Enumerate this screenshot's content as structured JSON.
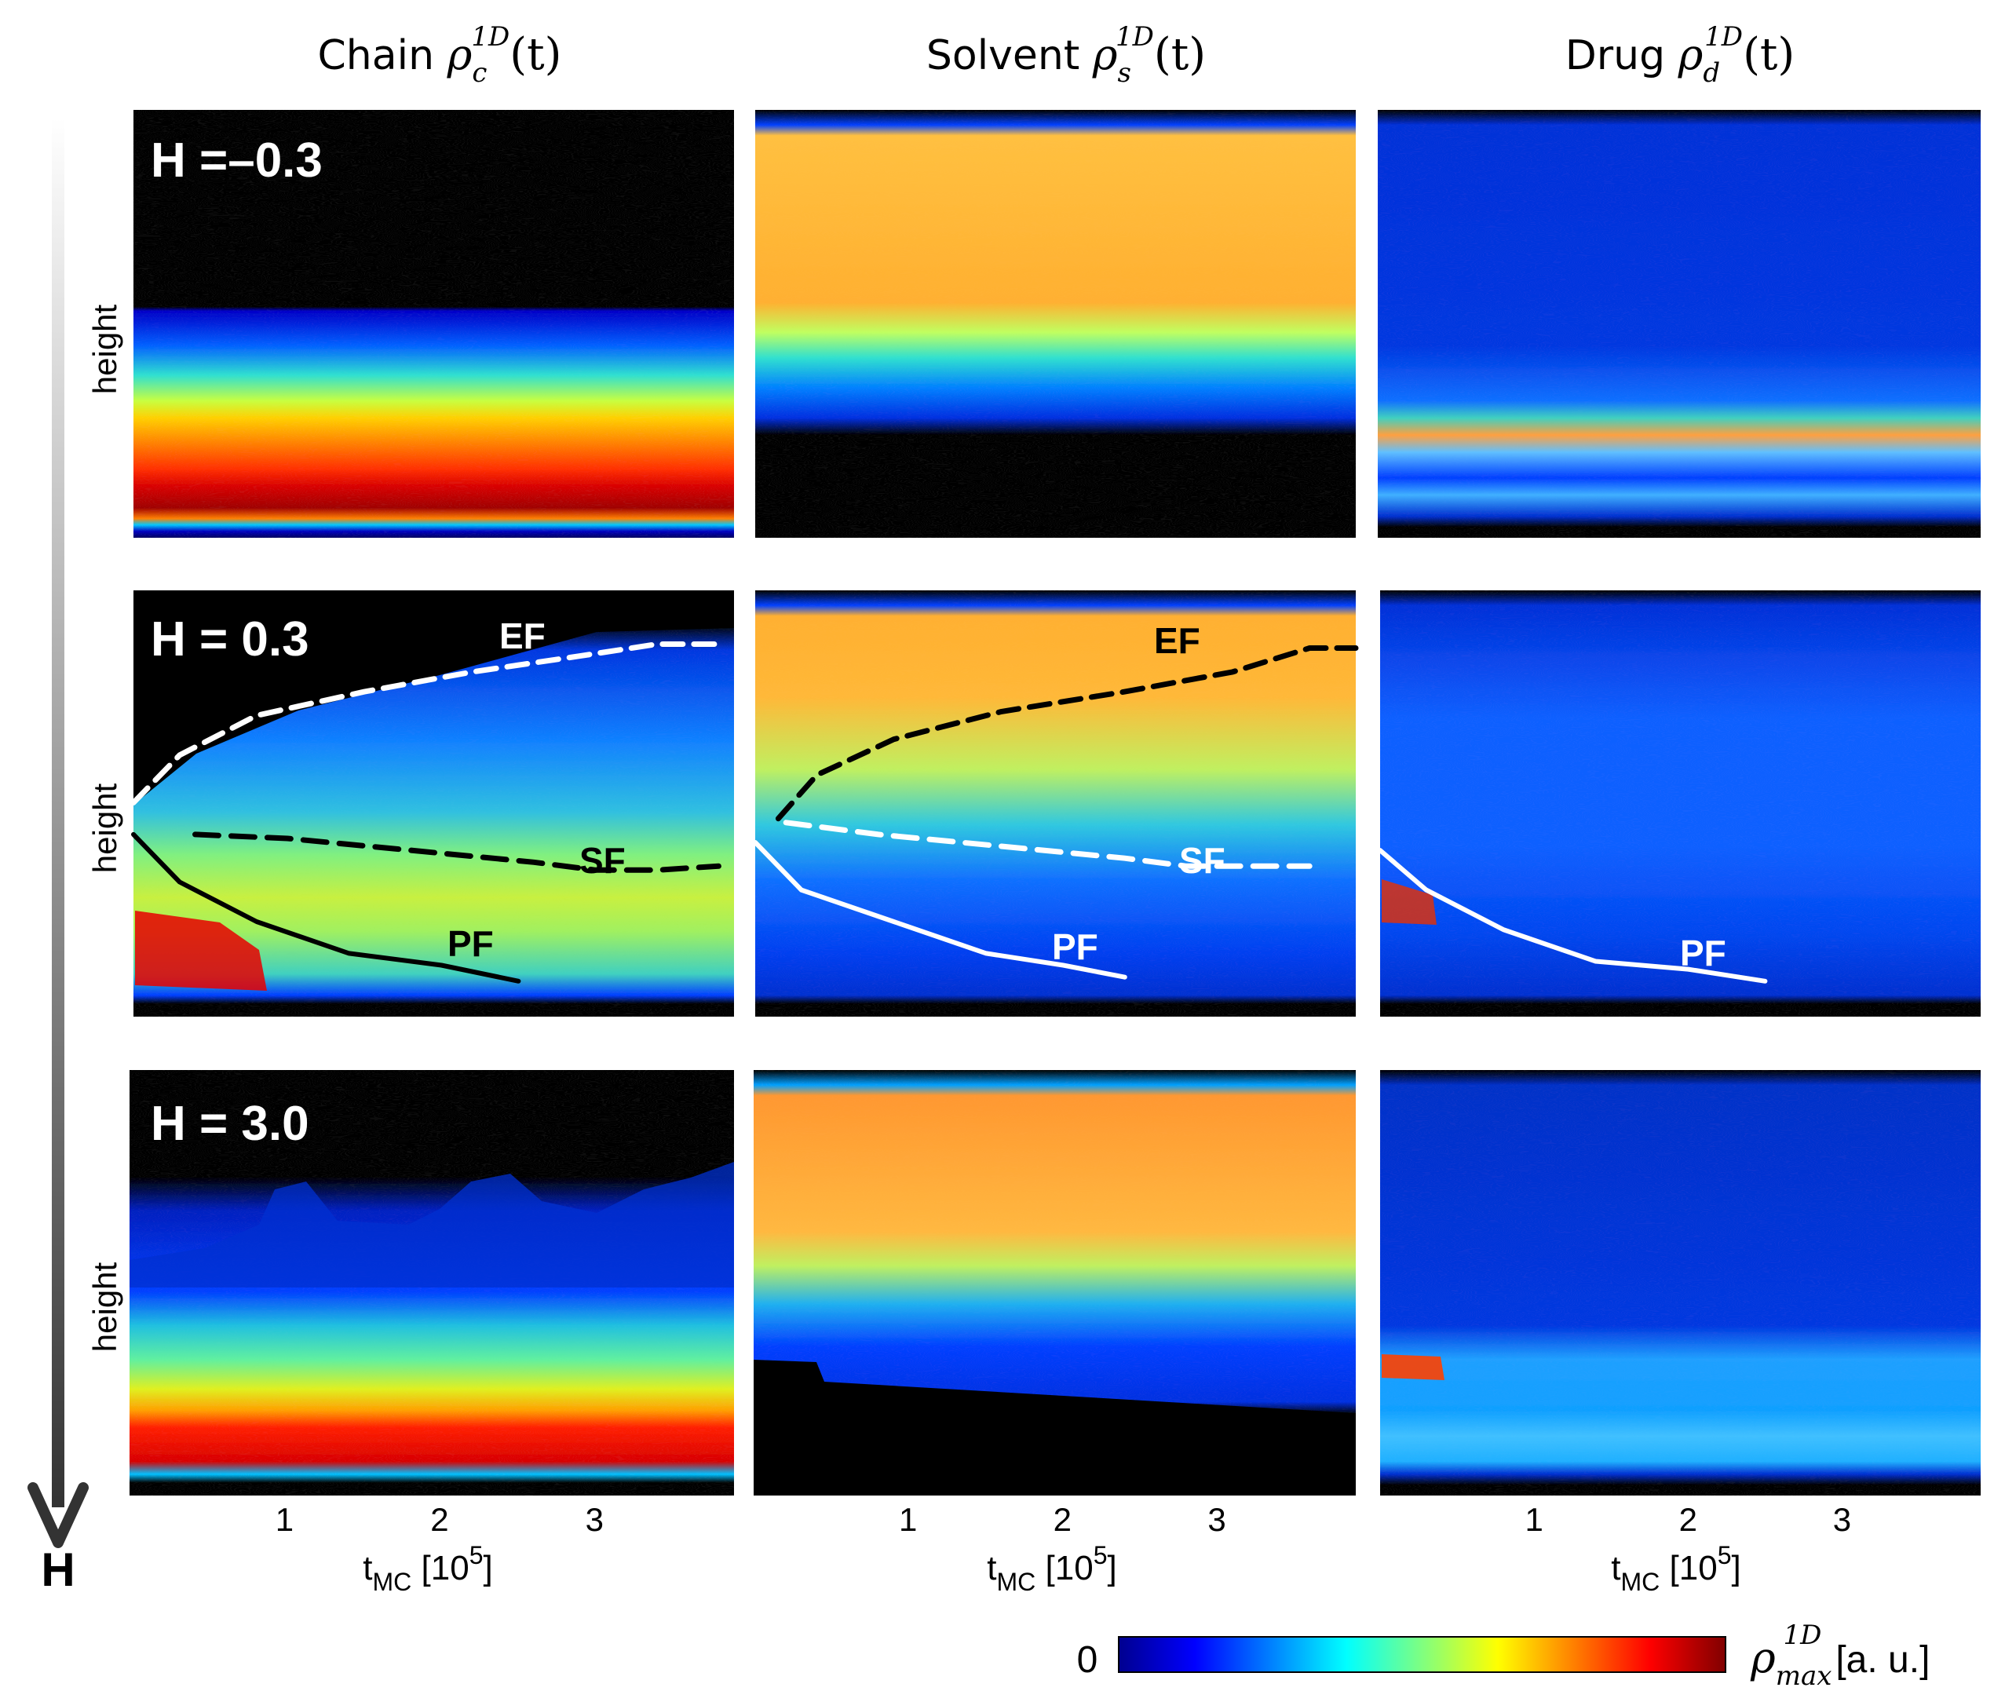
{
  "columns": [
    {
      "word": "Chain",
      "symbol": "ρ",
      "sub": "c",
      "sup": "1D",
      "arg": "(t)"
    },
    {
      "word": "Solvent",
      "symbol": "ρ",
      "sub": "s",
      "sup": "1D",
      "arg": "(t)"
    },
    {
      "word": "Drug",
      "symbol": "ρ",
      "sub": "d",
      "sup": "1D",
      "arg": "(t)"
    }
  ],
  "rows": [
    {
      "label": "H =–0.3",
      "ylabel": "height"
    },
    {
      "label": "H = 0.3",
      "ylabel": "height"
    },
    {
      "label": "H = 3.0",
      "ylabel": "height"
    }
  ],
  "x_axis": {
    "label_main": "t",
    "label_sub": "MC",
    "label_unit": "[10",
    "label_exp": "5",
    "label_close": "]",
    "ticks": [
      "1",
      "2",
      "3"
    ]
  },
  "arrow_label": "H",
  "colorbar": {
    "min_label": "0",
    "max_symbol": "ρ",
    "max_sup": "1D",
    "max_sub": "max",
    "max_unit": "[a. u.]"
  },
  "colors": {
    "low": "#00008f",
    "blue": "#0000ff",
    "cyan": "#00ffff",
    "yellow": "#ffff00",
    "orange": "#ff8000",
    "red": "#ff0000",
    "high": "#800000",
    "bg": "#000000"
  },
  "chart_data": {
    "type": "heatmap",
    "title": "",
    "xlabel": "tMC [10^5]",
    "ylabel": "height",
    "x_ticks": [
      1,
      2,
      3
    ],
    "xlim": [
      0,
      3.9
    ],
    "colormap": "jet",
    "colorbar_range": [
      0,
      "ρ1D max"
    ],
    "front_labels": {
      "ef": "EF",
      "sf": "SF",
      "pf": "PF"
    },
    "fronts_H03": {
      "chain": {
        "EF": {
          "t": [
            0,
            0.3,
            0.8,
            1.5,
            2.2,
            2.9,
            3.4,
            3.8
          ],
          "h": [
            0.5,
            0.62,
            0.72,
            0.78,
            0.83,
            0.87,
            0.9,
            0.9
          ]
        },
        "SF": {
          "t": [
            0.4,
            1,
            1.8,
            2.6,
            3,
            3.4,
            3.8
          ],
          "h": [
            0.42,
            0.41,
            0.38,
            0.35,
            0.33,
            0.33,
            0.34
          ]
        },
        "PF": {
          "t": [
            0,
            0.3,
            0.8,
            1.4,
            2,
            2.5
          ],
          "h": [
            0.42,
            0.3,
            0.2,
            0.12,
            0.09,
            0.05
          ]
        }
      },
      "solvent": {
        "EF": {
          "t": [
            0.15,
            0.4,
            0.9,
            1.6,
            2.4,
            3.1,
            3.6,
            3.9
          ],
          "h": [
            0.46,
            0.57,
            0.66,
            0.73,
            0.78,
            0.83,
            0.89,
            0.89
          ]
        },
        "SF": {
          "t": [
            0.2,
            0.8,
            1.6,
            2.4,
            2.8,
            3.3,
            3.6
          ],
          "h": [
            0.45,
            0.42,
            0.39,
            0.36,
            0.34,
            0.34,
            0.34
          ]
        },
        "PF": {
          "t": [
            0,
            0.3,
            0.9,
            1.5,
            2,
            2.4
          ],
          "h": [
            0.4,
            0.28,
            0.2,
            0.12,
            0.09,
            0.06
          ]
        }
      },
      "drug": {
        "PF": {
          "t": [
            0,
            0.3,
            0.8,
            1.4,
            2,
            2.5
          ],
          "h": [
            0.38,
            0.28,
            0.18,
            0.1,
            0.08,
            0.05
          ]
        }
      }
    }
  }
}
